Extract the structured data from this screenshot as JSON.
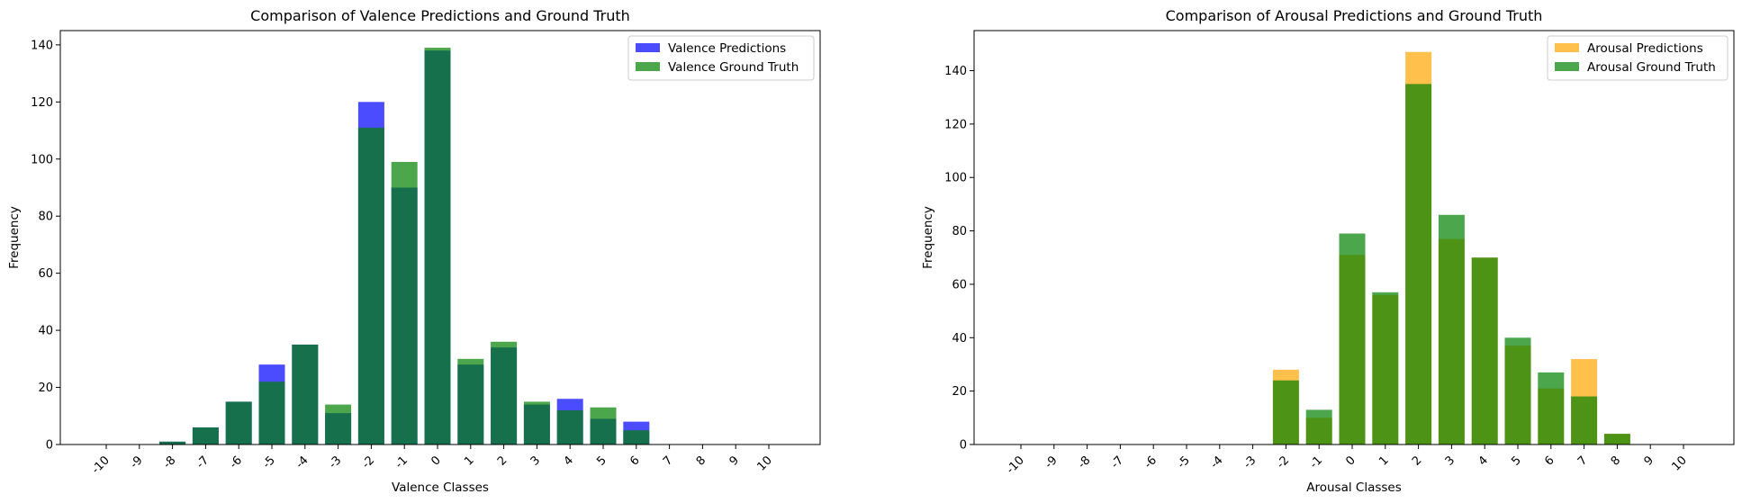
{
  "charts": [
    {
      "type": "bar",
      "title": "Comparison of Valence Predictions and Ground Truth",
      "xlabel": "Valence Classes",
      "ylabel": "Frequency",
      "categories": [
        "-10",
        "-9",
        "-8",
        "-7",
        "-6",
        "-5",
        "-4",
        "-3",
        "-2",
        "-1",
        "0",
        "1",
        "2",
        "3",
        "4",
        "5",
        "6",
        "7",
        "8",
        "9",
        "10"
      ],
      "ylim": [
        0,
        145
      ],
      "yticks": [
        0,
        20,
        40,
        60,
        80,
        100,
        120,
        140
      ],
      "legend_position": "top-right",
      "series": [
        {
          "name": "Valence Predictions",
          "color": "#0000ff",
          "alpha": 0.7,
          "values": [
            0,
            0,
            1,
            6,
            15,
            28,
            35,
            11,
            120,
            90,
            138,
            28,
            34,
            14,
            16,
            9,
            8,
            0,
            0,
            0,
            0
          ]
        },
        {
          "name": "Valence Ground Truth",
          "color": "#008000",
          "alpha": 0.7,
          "values": [
            0,
            0,
            1,
            6,
            15,
            22,
            35,
            14,
            111,
            99,
            139,
            30,
            36,
            15,
            12,
            13,
            5,
            0,
            0,
            0,
            0
          ]
        }
      ]
    },
    {
      "type": "bar",
      "title": "Comparison of Arousal Predictions and Ground Truth",
      "xlabel": "Arousal Classes",
      "ylabel": "Frequency",
      "categories": [
        "-10",
        "-9",
        "-8",
        "-7",
        "-6",
        "-5",
        "-4",
        "-3",
        "-2",
        "-1",
        "0",
        "1",
        "2",
        "3",
        "4",
        "5",
        "6",
        "7",
        "8",
        "9",
        "10"
      ],
      "ylim": [
        0,
        155
      ],
      "yticks": [
        0,
        20,
        40,
        60,
        80,
        100,
        120,
        140
      ],
      "legend_position": "top-right",
      "series": [
        {
          "name": "Arousal Predictions",
          "color": "#ffa500",
          "alpha": 0.7,
          "values": [
            0,
            0,
            0,
            0,
            0,
            0,
            0,
            0,
            28,
            10,
            71,
            56,
            147,
            77,
            70,
            37,
            21,
            32,
            4,
            0,
            0
          ]
        },
        {
          "name": "Arousal Ground Truth",
          "color": "#008000",
          "alpha": 0.7,
          "values": [
            0,
            0,
            0,
            0,
            0,
            0,
            0,
            0,
            24,
            13,
            79,
            57,
            135,
            86,
            70,
            40,
            27,
            18,
            4,
            0,
            0
          ]
        }
      ]
    }
  ]
}
